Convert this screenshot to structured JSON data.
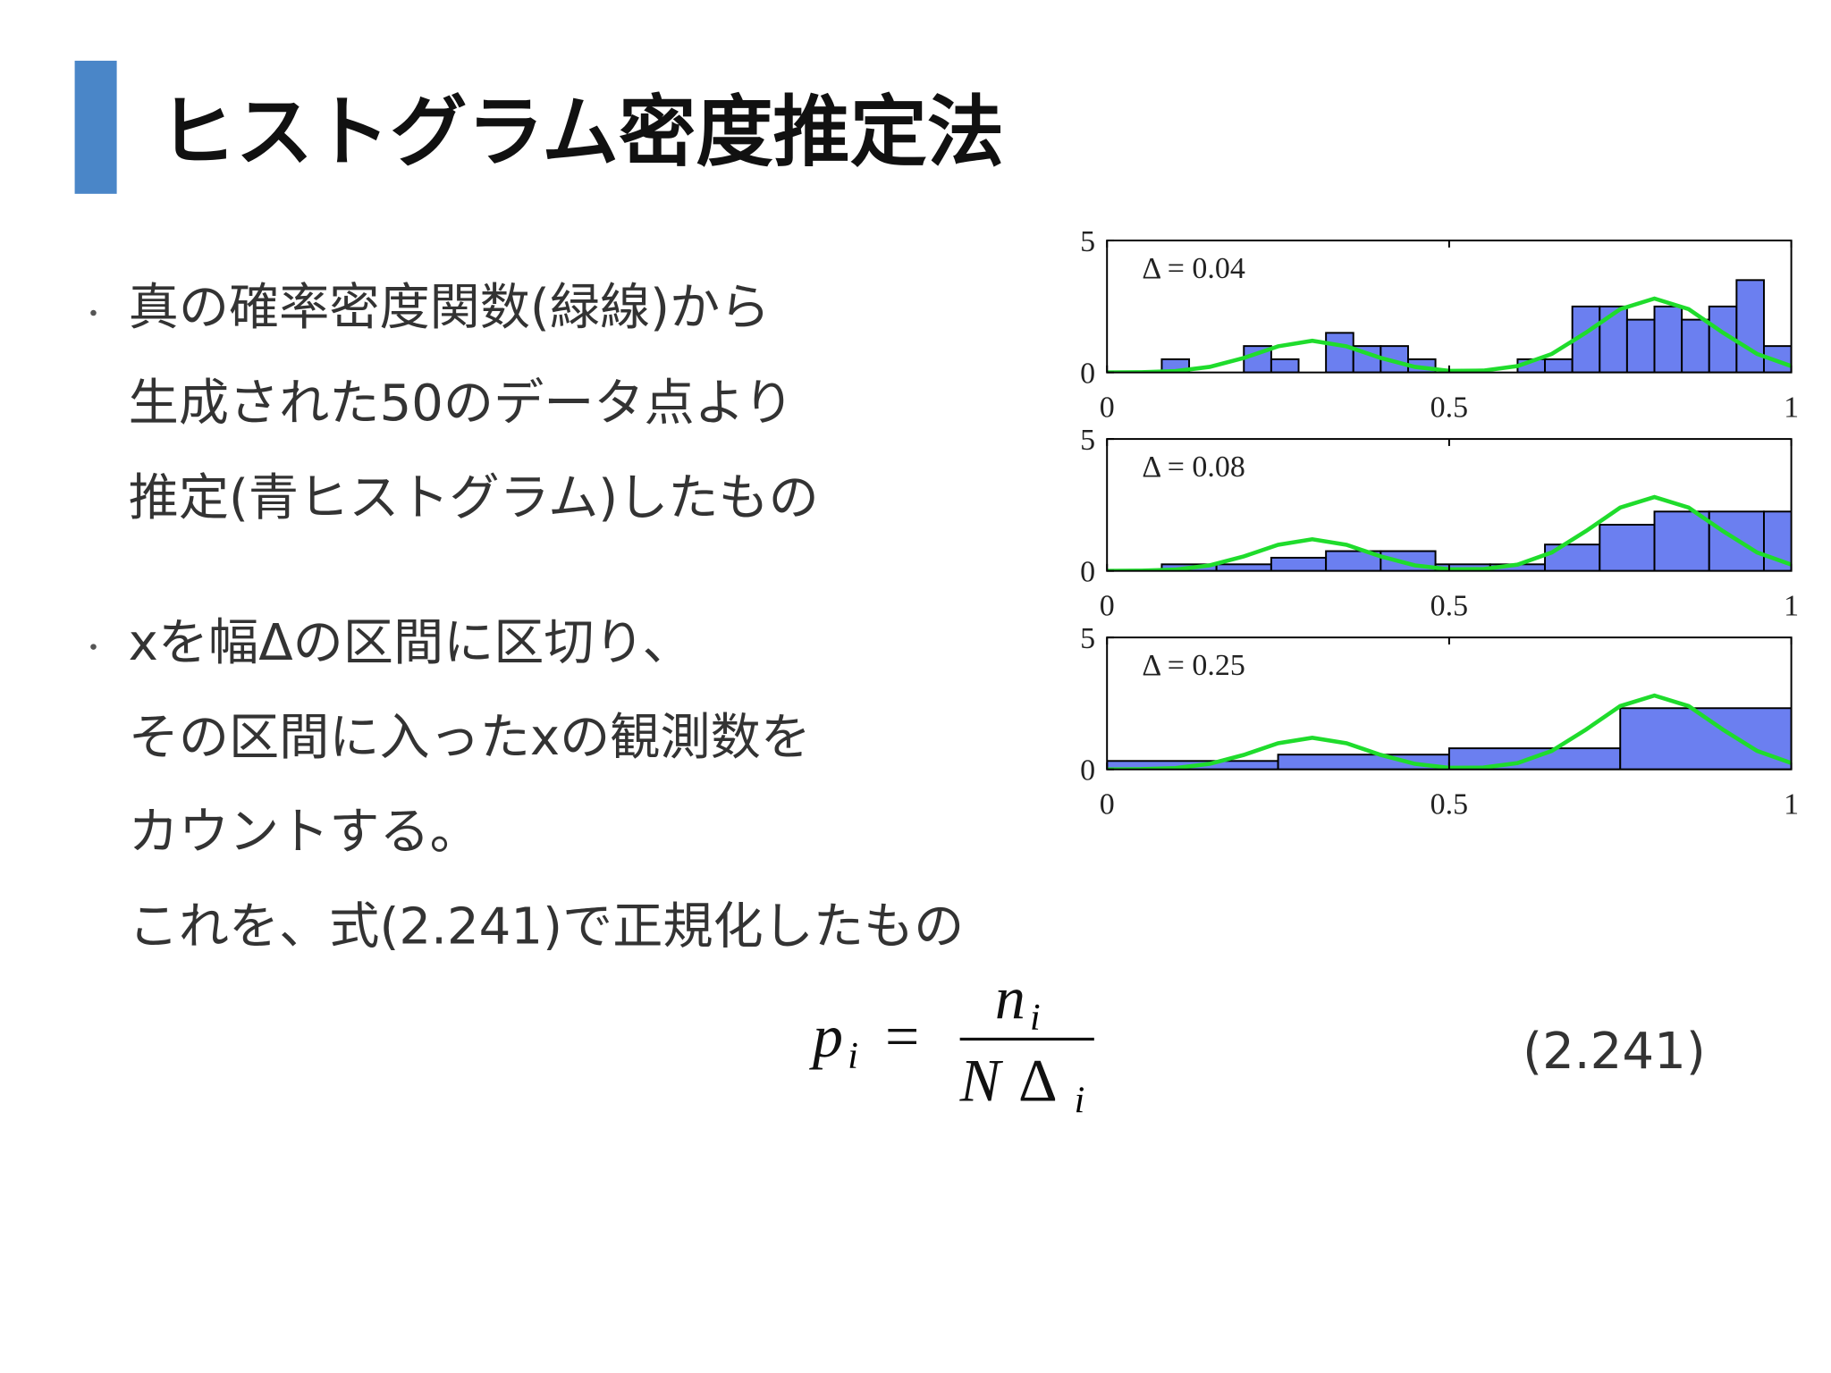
{
  "title": "ヒストグラム密度推定法",
  "bullets": [
    {
      "lines": [
        "真の確率密度関数(緑線)から",
        "生成された50のデータ点より",
        "推定(青ヒストグラム)したもの"
      ]
    },
    {
      "lines": [
        "xを幅Δの区間に区切り、",
        "その区間に入ったxの観測数を",
        "カウントする。",
        "これを、式(2.241)で正規化したもの"
      ]
    }
  ],
  "equation": {
    "lhs": "p",
    "lhs_sub": "i",
    "relation": "=",
    "numerator": "n",
    "numerator_sub": "i",
    "denominator_n": "N",
    "denominator_delta": "Δ",
    "denominator_sub": "i",
    "number": "(2.241)"
  },
  "chart_data": [
    {
      "type": "histogram",
      "annotation": "Δ = 0.04",
      "bins": [
        0,
        0.04,
        0.08,
        0.12,
        0.16,
        0.2,
        0.24,
        0.28,
        0.32,
        0.36,
        0.4,
        0.44,
        0.48,
        0.52,
        0.56,
        0.6,
        0.64,
        0.68,
        0.72,
        0.76,
        0.8,
        0.84,
        0.88,
        0.92,
        0.96,
        1.0
      ],
      "values": [
        0,
        0,
        0.5,
        0,
        0,
        1.0,
        0.5,
        0,
        1.5,
        1.0,
        1.0,
        0.5,
        0,
        0,
        0,
        0.5,
        0.5,
        2.5,
        2.5,
        2.0,
        2.5,
        2.0,
        2.5,
        3.5,
        1.0
      ],
      "color": "#6b7ff0",
      "curve": {
        "color": "#1fdc2c",
        "x": [
          0,
          0.05,
          0.1,
          0.15,
          0.2,
          0.25,
          0.3,
          0.35,
          0.4,
          0.45,
          0.5,
          0.55,
          0.6,
          0.65,
          0.7,
          0.75,
          0.8,
          0.85,
          0.9,
          0.95,
          1.0
        ],
        "values": [
          0.0,
          0.01,
          0.05,
          0.21,
          0.55,
          0.99,
          1.2,
          0.99,
          0.55,
          0.21,
          0.06,
          0.07,
          0.24,
          0.7,
          1.51,
          2.4,
          2.8,
          2.4,
          1.51,
          0.7,
          0.24
        ]
      },
      "xlim": [
        0,
        1
      ],
      "ylim": [
        0,
        5
      ],
      "xticks": [
        0,
        0.5,
        1
      ],
      "yticks": [
        0,
        5
      ]
    },
    {
      "type": "histogram",
      "annotation": "Δ = 0.08",
      "bins": [
        0,
        0.08,
        0.16,
        0.24,
        0.32,
        0.4,
        0.48,
        0.56,
        0.64,
        0.72,
        0.8,
        0.88,
        0.96,
        1.04
      ],
      "values": [
        0,
        0.25,
        0.25,
        0.5,
        0.75,
        0.75,
        0.25,
        0.25,
        1.0,
        1.75,
        2.25,
        2.25,
        2.25
      ],
      "color": "#6b7ff0",
      "curve": {
        "color": "#1fdc2c",
        "x": [
          0,
          0.05,
          0.1,
          0.15,
          0.2,
          0.25,
          0.3,
          0.35,
          0.4,
          0.45,
          0.5,
          0.55,
          0.6,
          0.65,
          0.7,
          0.75,
          0.8,
          0.85,
          0.9,
          0.95,
          1.0
        ],
        "values": [
          0.0,
          0.01,
          0.05,
          0.21,
          0.55,
          0.99,
          1.2,
          0.99,
          0.55,
          0.21,
          0.06,
          0.07,
          0.24,
          0.7,
          1.51,
          2.4,
          2.8,
          2.4,
          1.51,
          0.7,
          0.24
        ]
      },
      "xlim": [
        0,
        1
      ],
      "ylim": [
        0,
        5
      ],
      "xticks": [
        0,
        0.5,
        1
      ],
      "yticks": [
        0,
        5
      ]
    },
    {
      "type": "histogram",
      "annotation": "Δ = 0.25",
      "bins": [
        0,
        0.25,
        0.5,
        0.75,
        1.0
      ],
      "values": [
        0.32,
        0.56,
        0.8,
        2.32
      ],
      "color": "#6b7ff0",
      "curve": {
        "color": "#1fdc2c",
        "x": [
          0,
          0.05,
          0.1,
          0.15,
          0.2,
          0.25,
          0.3,
          0.35,
          0.4,
          0.45,
          0.5,
          0.55,
          0.6,
          0.65,
          0.7,
          0.75,
          0.8,
          0.85,
          0.9,
          0.95,
          1.0
        ],
        "values": [
          0.0,
          0.01,
          0.05,
          0.21,
          0.55,
          0.99,
          1.2,
          0.99,
          0.55,
          0.21,
          0.06,
          0.07,
          0.24,
          0.7,
          1.51,
          2.4,
          2.8,
          2.4,
          1.51,
          0.7,
          0.24
        ]
      },
      "xlim": [
        0,
        1
      ],
      "ylim": [
        0,
        5
      ],
      "xticks": [
        0,
        0.5,
        1
      ],
      "yticks": [
        0,
        5
      ]
    }
  ]
}
